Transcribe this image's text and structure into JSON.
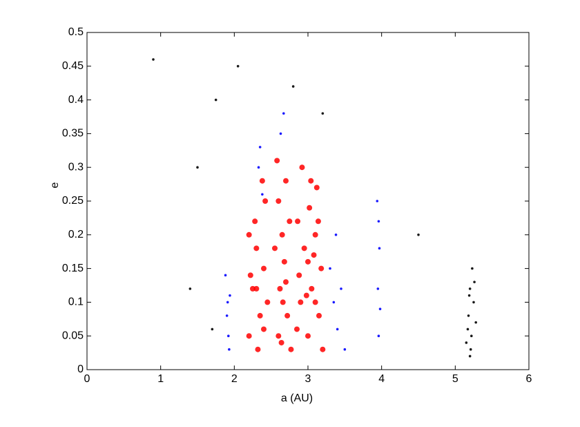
{
  "chart_data": {
    "type": "scatter",
    "xlabel": "a   (AU)",
    "ylabel": "e",
    "xlim": [
      0,
      6
    ],
    "xticks": [
      0,
      1,
      2,
      3,
      4,
      5,
      6
    ],
    "ylim": [
      0,
      0.5
    ],
    "yticks": [
      0,
      0.05,
      0.1,
      0.15,
      0.2,
      0.25,
      0.3,
      0.35,
      0.4,
      0.45,
      0.5
    ],
    "series": [
      {
        "color": "#ff0000",
        "x": [
          2.2,
          2.25,
          2.3,
          2.28,
          2.35,
          2.4,
          2.42,
          2.2,
          2.32,
          2.45,
          2.38,
          2.22,
          2.6,
          2.62,
          2.65,
          2.7,
          2.58,
          2.68,
          2.72,
          2.75,
          2.6,
          2.77,
          2.55,
          2.66,
          2.85,
          2.88,
          2.86,
          2.92,
          2.9,
          2.95,
          3.0,
          3.05,
          3.1,
          3.12,
          3.02,
          3.15,
          3.18,
          3.2,
          3.08,
          3.14,
          2.98,
          3.04,
          2.3,
          2.7,
          3.0,
          2.4,
          2.64,
          3.1
        ],
        "y": [
          0.05,
          0.12,
          0.18,
          0.22,
          0.08,
          0.15,
          0.25,
          0.2,
          0.03,
          0.1,
          0.28,
          0.14,
          0.05,
          0.12,
          0.2,
          0.28,
          0.31,
          0.16,
          0.08,
          0.22,
          0.25,
          0.03,
          0.18,
          0.1,
          0.06,
          0.14,
          0.22,
          0.3,
          0.1,
          0.18,
          0.05,
          0.12,
          0.2,
          0.27,
          0.24,
          0.08,
          0.15,
          0.03,
          0.17,
          0.22,
          0.11,
          0.28,
          0.12,
          0.13,
          0.16,
          0.06,
          0.04,
          0.1
        ]
      },
      {
        "color": "#0000ff",
        "x": [
          1.92,
          1.9,
          1.94,
          1.88,
          1.93,
          1.91,
          2.33,
          2.35,
          2.38,
          2.67,
          2.63,
          3.3,
          3.35,
          3.4,
          3.45,
          3.5,
          3.38,
          3.96,
          3.95,
          3.97,
          3.94,
          3.96,
          3.98
        ],
        "y": [
          0.05,
          0.08,
          0.11,
          0.14,
          0.03,
          0.1,
          0.3,
          0.33,
          0.26,
          0.38,
          0.35,
          0.15,
          0.1,
          0.06,
          0.12,
          0.03,
          0.2,
          0.05,
          0.12,
          0.18,
          0.25,
          0.22,
          0.09
        ]
      },
      {
        "color": "#000000",
        "x": [
          5.2,
          5.22,
          5.18,
          5.25,
          5.2,
          5.15,
          5.28,
          5.23,
          5.19,
          5.21,
          5.26,
          5.17,
          0.9,
          1.5,
          1.75,
          2.05,
          2.8,
          3.2,
          1.4,
          4.5,
          1.7
        ],
        "y": [
          0.02,
          0.05,
          0.08,
          0.1,
          0.12,
          0.04,
          0.07,
          0.15,
          0.11,
          0.03,
          0.13,
          0.06,
          0.46,
          0.3,
          0.4,
          0.45,
          0.42,
          0.38,
          0.12,
          0.2,
          0.06
        ]
      }
    ]
  }
}
